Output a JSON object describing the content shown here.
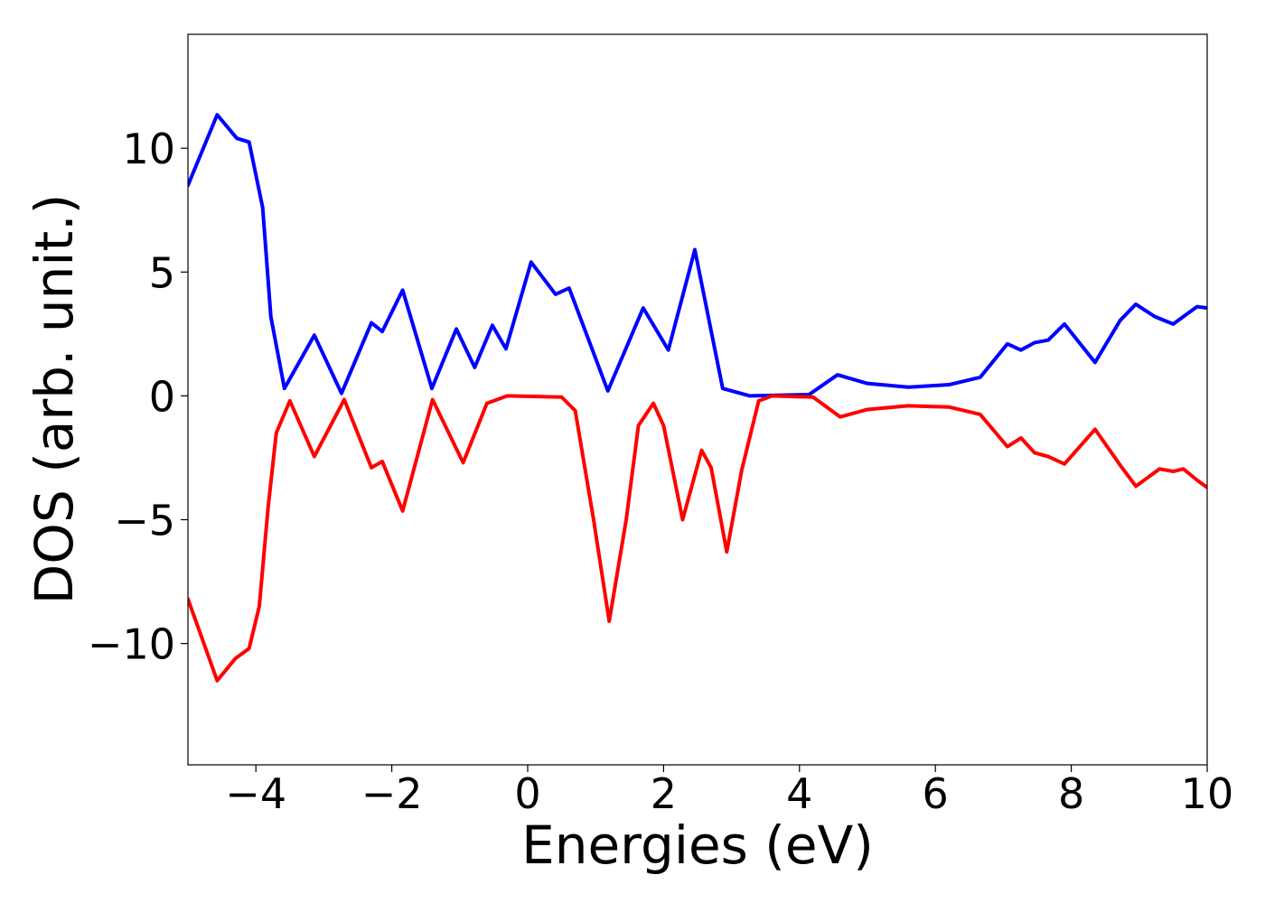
{
  "chart_data": {
    "type": "line",
    "xlabel": "Energies (eV)",
    "ylabel": "DOS (arb. unit.)",
    "xlim": [
      -5,
      10
    ],
    "ylim": [
      -14.9,
      14.6
    ],
    "xticks": [
      {
        "value": -4,
        "label": "−4"
      },
      {
        "value": -2,
        "label": "−2"
      },
      0,
      2,
      4,
      6,
      8,
      10
    ],
    "yticks": [
      {
        "value": -10,
        "label": "−10"
      },
      {
        "value": -5,
        "label": "−5"
      },
      0,
      5,
      10
    ],
    "series": [
      {
        "color": "#0000ff",
        "x": [
          -5,
          -4.57,
          -4.28,
          -4.1,
          -3.9,
          -3.78,
          -3.58,
          -3.14,
          -2.74,
          -2.3,
          -2.14,
          -1.84,
          -1.41,
          -1.05,
          -0.78,
          -0.52,
          -0.32,
          0.05,
          0.41,
          0.61,
          1.18,
          1.7,
          2.07,
          2.46,
          2.87,
          3.27,
          4.14,
          4.56,
          5.0,
          5.6,
          6.2,
          6.66,
          7.06,
          7.26,
          7.46,
          7.66,
          7.9,
          8.35,
          8.72,
          8.95,
          9.23,
          9.5,
          9.85,
          10
        ],
        "values": [
          8.5,
          11.35,
          10.4,
          10.25,
          7.6,
          3.2,
          0.3,
          2.45,
          0.1,
          2.95,
          2.6,
          4.27,
          0.3,
          2.7,
          1.15,
          2.85,
          1.9,
          5.4,
          4.1,
          4.35,
          0.2,
          3.55,
          1.85,
          5.9,
          0.3,
          0,
          0.05,
          0.85,
          0.5,
          0.35,
          0.45,
          0.75,
          2.1,
          1.85,
          2.15,
          2.25,
          2.9,
          1.35,
          3.05,
          3.7,
          3.2,
          2.9,
          3.6,
          3.55
        ]
      },
      {
        "color": "#ff0000",
        "x": [
          -5,
          -4.57,
          -4.3,
          -4.1,
          -3.95,
          -3.82,
          -3.7,
          -3.5,
          -3.14,
          -2.7,
          -2.3,
          -2.14,
          -1.84,
          -1.4,
          -0.95,
          -0.6,
          -0.3,
          0.5,
          0.7,
          0.97,
          1.2,
          1.45,
          1.63,
          1.85,
          2.0,
          2.28,
          2.56,
          2.7,
          2.93,
          3.15,
          3.4,
          3.6,
          4.2,
          4.6,
          5.0,
          5.6,
          6.2,
          6.66,
          7.06,
          7.26,
          7.46,
          7.66,
          7.9,
          8.35,
          8.72,
          8.95,
          9.3,
          9.5,
          9.65,
          9.85,
          10
        ],
        "values": [
          -8.2,
          -11.5,
          -10.6,
          -10.2,
          -8.5,
          -4.5,
          -1.5,
          -0.2,
          -2.45,
          -0.15,
          -2.9,
          -2.65,
          -4.65,
          -0.15,
          -2.7,
          -0.3,
          0,
          -0.05,
          -0.6,
          -5,
          -9.1,
          -5,
          -1.2,
          -0.3,
          -1.2,
          -5,
          -2.2,
          -2.9,
          -6.3,
          -3,
          -0.2,
          0,
          -0.05,
          -0.85,
          -0.55,
          -0.4,
          -0.45,
          -0.75,
          -2.05,
          -1.7,
          -2.3,
          -2.45,
          -2.75,
          -1.35,
          -2.8,
          -3.65,
          -2.95,
          -3.05,
          -2.95,
          -3.4,
          -3.7
        ]
      }
    ]
  }
}
